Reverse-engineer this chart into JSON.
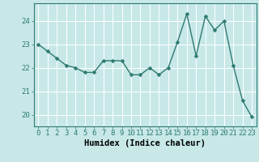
{
  "x": [
    0,
    1,
    2,
    3,
    4,
    5,
    6,
    7,
    8,
    9,
    10,
    11,
    12,
    13,
    14,
    15,
    16,
    17,
    18,
    19,
    20,
    21,
    22,
    23
  ],
  "y": [
    23.0,
    22.7,
    22.4,
    22.1,
    22.0,
    21.8,
    21.8,
    22.3,
    22.3,
    22.3,
    21.7,
    21.7,
    22.0,
    21.7,
    22.0,
    23.1,
    24.3,
    22.5,
    24.2,
    23.6,
    24.0,
    22.1,
    20.6,
    19.9
  ],
  "line_color": "#2d7a6e",
  "marker_color": "#2d7a6e",
  "bg_color": "#c8e8e8",
  "grid_color": "#ffffff",
  "xlabel": "Humidex (Indice chaleur)",
  "ylim": [
    19.5,
    24.75
  ],
  "xlim": [
    -0.5,
    23.5
  ],
  "yticks": [
    20,
    21,
    22,
    23,
    24
  ],
  "xticks": [
    0,
    1,
    2,
    3,
    4,
    5,
    6,
    7,
    8,
    9,
    10,
    11,
    12,
    13,
    14,
    15,
    16,
    17,
    18,
    19,
    20,
    21,
    22,
    23
  ],
  "tick_fontsize": 6.5,
  "xlabel_fontsize": 7.5,
  "linewidth": 1.0,
  "markersize": 2.5
}
